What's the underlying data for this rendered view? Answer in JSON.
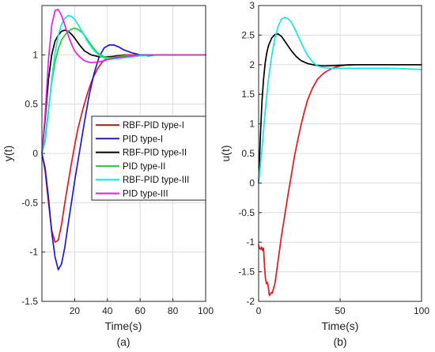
{
  "chart_data": [
    {
      "type": "line",
      "panel_label": "(a)",
      "xlabel": "Time(s)",
      "ylabel": "y(t)",
      "xlim": [
        0,
        100
      ],
      "ylim": [
        -1.5,
        1.5
      ],
      "xticks": [
        20,
        40,
        60,
        80,
        100
      ],
      "yticks": [
        -1.5,
        -1,
        -0.5,
        0,
        0.5,
        1
      ],
      "ytick_labels": [
        "-1.5",
        "-1",
        "-0.5",
        "0",
        "0.5",
        "1"
      ],
      "grid": true,
      "legend_position": "center-right",
      "series": [
        {
          "name": "RBF-PID type-I",
          "color": "#e8141b",
          "x": [
            0,
            2,
            4,
            6,
            8,
            10,
            12,
            14,
            16,
            18,
            20,
            22,
            25,
            28,
            31,
            34,
            37,
            40,
            45,
            50,
            55,
            60,
            70,
            80,
            100
          ],
          "y": [
            0,
            -0.18,
            -0.5,
            -0.78,
            -0.9,
            -0.88,
            -0.72,
            -0.5,
            -0.3,
            -0.1,
            0.08,
            0.25,
            0.45,
            0.62,
            0.76,
            0.86,
            0.93,
            0.97,
            0.99,
            1.0,
            1.0,
            1.0,
            1.0,
            1.0,
            1.0
          ]
        },
        {
          "name": "PID type-I",
          "color": "#1a1ad6",
          "x": [
            0,
            2,
            4,
            6,
            8,
            10,
            12,
            14,
            16,
            18,
            20,
            23,
            26,
            29,
            32,
            35,
            38,
            41,
            44,
            47,
            50,
            55,
            60,
            65,
            70,
            80,
            100
          ],
          "y": [
            0,
            -0.15,
            -0.45,
            -0.8,
            -1.05,
            -1.18,
            -1.12,
            -0.95,
            -0.72,
            -0.5,
            -0.28,
            0.02,
            0.32,
            0.6,
            0.82,
            0.98,
            1.07,
            1.1,
            1.1,
            1.08,
            1.05,
            1.02,
            1.0,
            0.99,
            1.0,
            1.0,
            1.0
          ]
        },
        {
          "name": "RBF-PID type-II",
          "color": "#000000",
          "x": [
            0,
            2,
            4,
            6,
            8,
            10,
            12,
            14,
            16,
            18,
            20,
            23,
            26,
            30,
            35,
            40,
            50,
            60,
            80,
            100
          ],
          "y": [
            0,
            0.35,
            0.75,
            1.0,
            1.14,
            1.2,
            1.24,
            1.25,
            1.24,
            1.21,
            1.17,
            1.1,
            1.04,
            1.0,
            0.98,
            0.98,
            0.99,
            1.0,
            1.0,
            1.0
          ]
        },
        {
          "name": "PID type-II",
          "color": "#21d321",
          "x": [
            0,
            2,
            4,
            6,
            8,
            10,
            12,
            14,
            16,
            18,
            20,
            22,
            25,
            28,
            31,
            34,
            38,
            42,
            46,
            50,
            60,
            80,
            100
          ],
          "y": [
            0,
            0.15,
            0.45,
            0.72,
            0.93,
            1.06,
            1.15,
            1.2,
            1.24,
            1.26,
            1.27,
            1.26,
            1.22,
            1.15,
            1.08,
            1.02,
            0.98,
            0.97,
            0.98,
            0.99,
            1.0,
            1.0,
            1.0
          ]
        },
        {
          "name": "RBF-PID type-III",
          "color": "#14e6e6",
          "x": [
            0,
            2,
            4,
            6,
            8,
            10,
            12,
            14,
            16,
            18,
            20,
            22,
            25,
            28,
            32,
            36,
            40,
            45,
            50,
            55,
            60,
            70,
            80,
            100
          ],
          "y": [
            0,
            0.12,
            0.42,
            0.75,
            1.02,
            1.2,
            1.31,
            1.37,
            1.4,
            1.39,
            1.36,
            1.31,
            1.22,
            1.13,
            1.04,
            0.98,
            0.96,
            0.96,
            0.97,
            0.98,
            0.99,
            1.0,
            1.0,
            1.0
          ]
        },
        {
          "name": "PID type-III",
          "color": "#e61ee6",
          "x": [
            0,
            2,
            4,
            6,
            8,
            10,
            12,
            14,
            16,
            18,
            20,
            23,
            26,
            30,
            35,
            40,
            45,
            50,
            55,
            60,
            70,
            80,
            100
          ],
          "y": [
            0,
            0.4,
            0.95,
            1.3,
            1.45,
            1.46,
            1.4,
            1.3,
            1.2,
            1.11,
            1.04,
            0.98,
            0.94,
            0.92,
            0.93,
            0.95,
            0.97,
            0.98,
            0.99,
            1.0,
            1.0,
            1.0,
            1.0
          ]
        }
      ]
    },
    {
      "type": "line",
      "panel_label": "(b)",
      "xlabel": "Time(s)",
      "ylabel": "u(t)",
      "xlim": [
        0,
        100
      ],
      "ylim": [
        -2,
        3
      ],
      "xticks": [
        0,
        50,
        100
      ],
      "yticks": [
        -2,
        -1.5,
        -1,
        -0.5,
        0,
        0.5,
        1,
        1.5,
        2,
        2.5,
        3
      ],
      "ytick_labels": [
        "-2",
        "-1.5",
        "-1",
        "-0.5",
        "0",
        "0.5",
        "1",
        "1.5",
        "2",
        "2.5",
        "3"
      ],
      "grid": true,
      "series": [
        {
          "color": "#e8141b",
          "x": [
            0,
            0.6,
            1.2,
            1.8,
            2.4,
            3,
            3.6,
            4.2,
            4.8,
            5.4,
            6,
            6.6,
            7.2,
            7.8,
            8.4,
            9,
            10,
            11,
            12,
            13,
            14,
            16,
            18,
            20,
            22,
            24,
            26,
            28,
            30,
            33,
            36,
            40,
            45,
            50,
            55,
            60,
            70,
            80,
            100
          ],
          "y": [
            -1.05,
            -1.1,
            -1.12,
            -1.08,
            -1.14,
            -1.1,
            -1.4,
            -1.62,
            -1.7,
            -1.68,
            -1.78,
            -1.9,
            -1.88,
            -1.85,
            -1.86,
            -1.8,
            -1.7,
            -1.5,
            -1.3,
            -1.1,
            -0.9,
            -0.55,
            -0.2,
            0.12,
            0.45,
            0.72,
            0.98,
            1.2,
            1.4,
            1.6,
            1.75,
            1.86,
            1.94,
            1.98,
            2.0,
            2.0,
            2.0,
            2.0,
            2.0
          ]
        },
        {
          "color": "#000000",
          "x": [
            0,
            1,
            2,
            3,
            4,
            5,
            6,
            8,
            10,
            12,
            14,
            16,
            18,
            20,
            23,
            26,
            30,
            35,
            40,
            50,
            60,
            80,
            100
          ],
          "y": [
            0,
            0.75,
            1.35,
            1.75,
            2.02,
            2.2,
            2.32,
            2.45,
            2.51,
            2.52,
            2.48,
            2.4,
            2.32,
            2.24,
            2.14,
            2.07,
            2.02,
            1.99,
            1.98,
            1.99,
            2.0,
            2.0,
            2.0
          ]
        },
        {
          "color": "#14e6e6",
          "x": [
            0,
            2,
            4,
            6,
            8,
            10,
            12,
            14,
            16,
            18,
            20,
            22,
            24,
            26,
            28,
            30,
            33,
            36,
            40,
            45,
            50,
            60,
            70,
            80,
            90,
            100
          ],
          "y": [
            0,
            0.55,
            1.2,
            1.75,
            2.15,
            2.45,
            2.65,
            2.77,
            2.8,
            2.78,
            2.72,
            2.62,
            2.5,
            2.38,
            2.26,
            2.16,
            2.05,
            1.98,
            1.95,
            1.94,
            1.94,
            1.94,
            1.94,
            1.94,
            1.93,
            1.92
          ]
        }
      ]
    }
  ]
}
